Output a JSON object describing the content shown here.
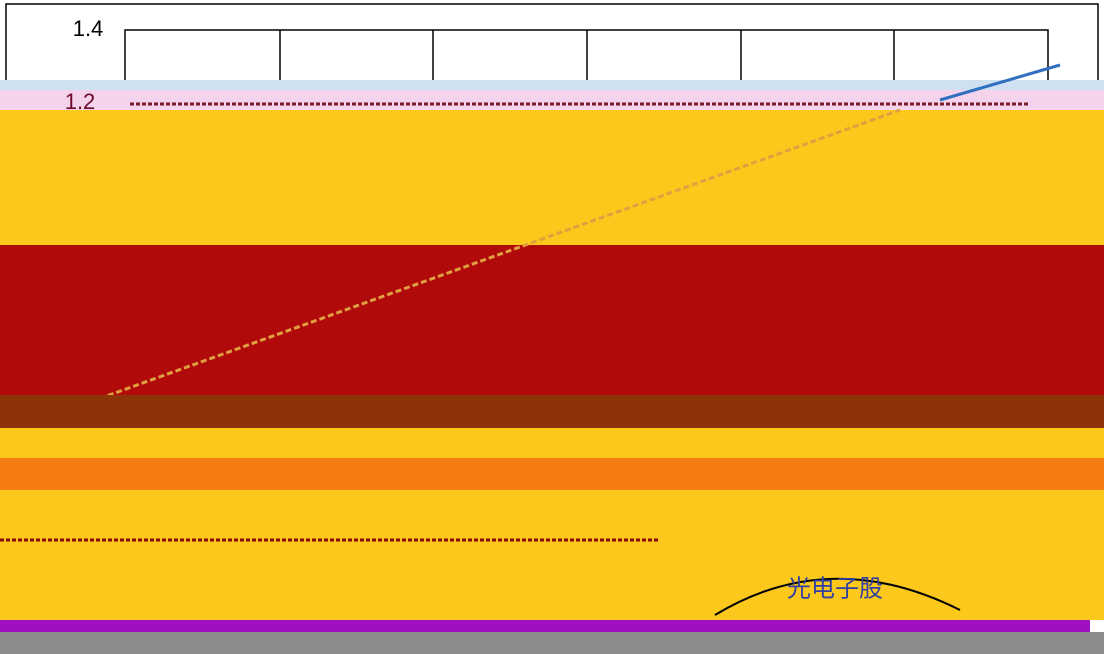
{
  "labels": {
    "top": "1.4",
    "middle": "1.2",
    "seal": "光电子股"
  }
}
